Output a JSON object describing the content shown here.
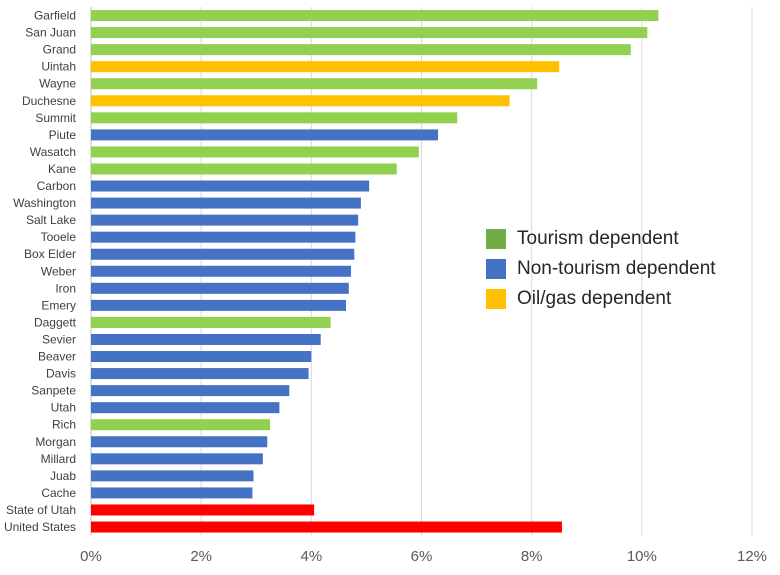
{
  "chart_data": {
    "type": "bar",
    "orientation": "horizontal",
    "title": "",
    "xlabel": "",
    "ylabel": "",
    "xlim": [
      0,
      12
    ],
    "x_ticks": [
      "0%",
      "2%",
      "4%",
      "6%",
      "8%",
      "10%",
      "12%"
    ],
    "grid": true,
    "legend_position": "right",
    "categories": [
      "Garfield",
      "San Juan",
      "Grand",
      "Uintah",
      "Wayne",
      "Duchesne",
      "Summit",
      "Piute",
      "Wasatch",
      "Kane",
      "Carbon",
      "Washington",
      "Salt Lake",
      "Tooele",
      "Box Elder",
      "Weber",
      "Iron",
      "Emery",
      "Daggett",
      "Sevier",
      "Beaver",
      "Davis",
      "Sanpete",
      "Utah",
      "Rich",
      "Morgan",
      "Millard",
      "Juab",
      "Cache",
      "State of Utah",
      "United States"
    ],
    "values": [
      10.3,
      10.1,
      9.8,
      8.5,
      8.1,
      7.6,
      6.65,
      6.3,
      5.95,
      5.55,
      5.05,
      4.9,
      4.85,
      4.8,
      4.78,
      4.72,
      4.68,
      4.63,
      4.35,
      4.17,
      4.0,
      3.95,
      3.6,
      3.42,
      3.25,
      3.2,
      3.12,
      2.95,
      2.93,
      4.05,
      8.55
    ],
    "groups": [
      "tourism",
      "tourism",
      "tourism",
      "oilgas",
      "tourism",
      "oilgas",
      "tourism",
      "non",
      "tourism",
      "tourism",
      "non",
      "non",
      "non",
      "non",
      "non",
      "non",
      "non",
      "non",
      "tourism",
      "non",
      "non",
      "non",
      "non",
      "non",
      "tourism",
      "non",
      "non",
      "non",
      "non",
      "reference",
      "reference"
    ],
    "colors": {
      "tourism": "#92d050",
      "non": "#4472c4",
      "oilgas": "#ffc000",
      "reference": "#ff0000",
      "legend_tourism": "#70ad47",
      "grid": "#d9d9d9",
      "axis": "#bfbfbf"
    },
    "legend": [
      {
        "label": "Tourism dependent",
        "color": "#70ad47"
      },
      {
        "label": "Non-tourism dependent",
        "color": "#4472c4"
      },
      {
        "label": "Oil/gas dependent",
        "color": "#ffc000"
      }
    ]
  }
}
